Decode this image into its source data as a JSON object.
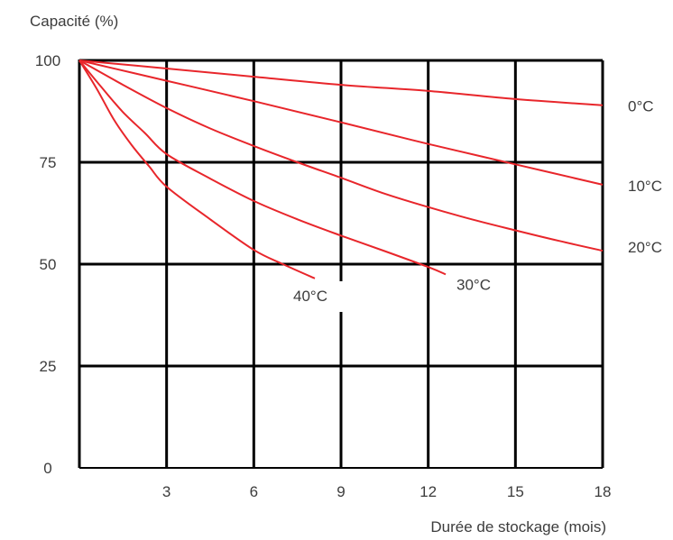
{
  "chart_data": {
    "type": "line",
    "ylabel": "Capacité (%)",
    "xlabel": "Durée de stockage (mois)",
    "xlim": [
      0,
      18
    ],
    "ylim": [
      0,
      100
    ],
    "x_ticks": [
      "3",
      "6",
      "9",
      "12",
      "15",
      "18"
    ],
    "y_ticks": [
      "0",
      "25",
      "50",
      "75",
      "100"
    ],
    "grid": true,
    "line_color": "#e8262b",
    "series": [
      {
        "name": "0°C",
        "x": [
          0,
          3,
          6,
          9,
          12,
          15,
          18
        ],
        "y": [
          100,
          98,
          96,
          94,
          92.5,
          90.5,
          89
        ]
      },
      {
        "name": "10°C",
        "x": [
          0,
          3,
          6,
          9,
          12,
          15,
          18
        ],
        "y": [
          100,
          95,
          90,
          84.8,
          79.5,
          74.5,
          69.5
        ]
      },
      {
        "name": "20°C",
        "x": [
          0,
          1.5,
          3,
          4.5,
          6,
          7.5,
          9,
          10.5,
          12,
          13.5,
          15,
          16.5,
          18
        ],
        "y": [
          100,
          94,
          88.3,
          83.3,
          79,
          75,
          71.2,
          67.3,
          64,
          61,
          58.3,
          55.7,
          53.3
        ]
      },
      {
        "name": "30°C",
        "x": [
          0,
          0.75,
          1.5,
          2.25,
          3,
          4.5,
          6,
          7.5,
          9,
          10.5,
          12,
          12.6
        ],
        "y": [
          100,
          93.5,
          87.3,
          82.2,
          77,
          71,
          65.5,
          61,
          57,
          53.2,
          49.3,
          47.5
        ]
      },
      {
        "name": "40°C",
        "x": [
          0,
          0.6,
          1.2,
          1.8,
          2.4,
          3,
          4.5,
          6,
          7,
          8.1
        ],
        "y": [
          100,
          93,
          85.3,
          79.2,
          74,
          69,
          61,
          53.5,
          50,
          46.5
        ]
      }
    ]
  }
}
